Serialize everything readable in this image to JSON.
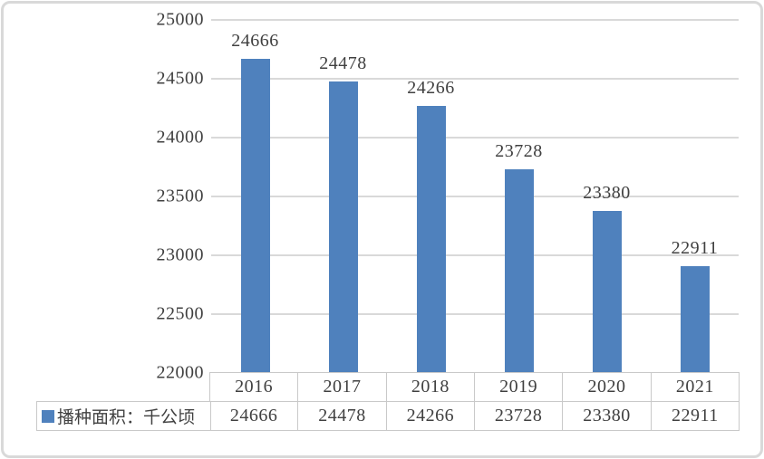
{
  "chart_data": {
    "type": "bar",
    "categories": [
      "2016",
      "2017",
      "2018",
      "2019",
      "2020",
      "2021"
    ],
    "values": [
      24666,
      24478,
      24266,
      23728,
      23380,
      22911
    ],
    "series_name": "播种面积：千公顷",
    "title": "",
    "xlabel": "",
    "ylabel": "",
    "ylim": [
      22000,
      25000
    ],
    "yticks": [
      25000,
      24500,
      24000,
      23500,
      23000,
      22500,
      22000
    ],
    "grid": true,
    "data_labels": true,
    "legend_position": "bottom-left-table",
    "bar_color": "#4F81BD",
    "gridline_color": "#D9D9D9",
    "table_border_color": "#C9C9C9",
    "text_color": "#404040",
    "frame_border_color": "#D9D9D9"
  }
}
